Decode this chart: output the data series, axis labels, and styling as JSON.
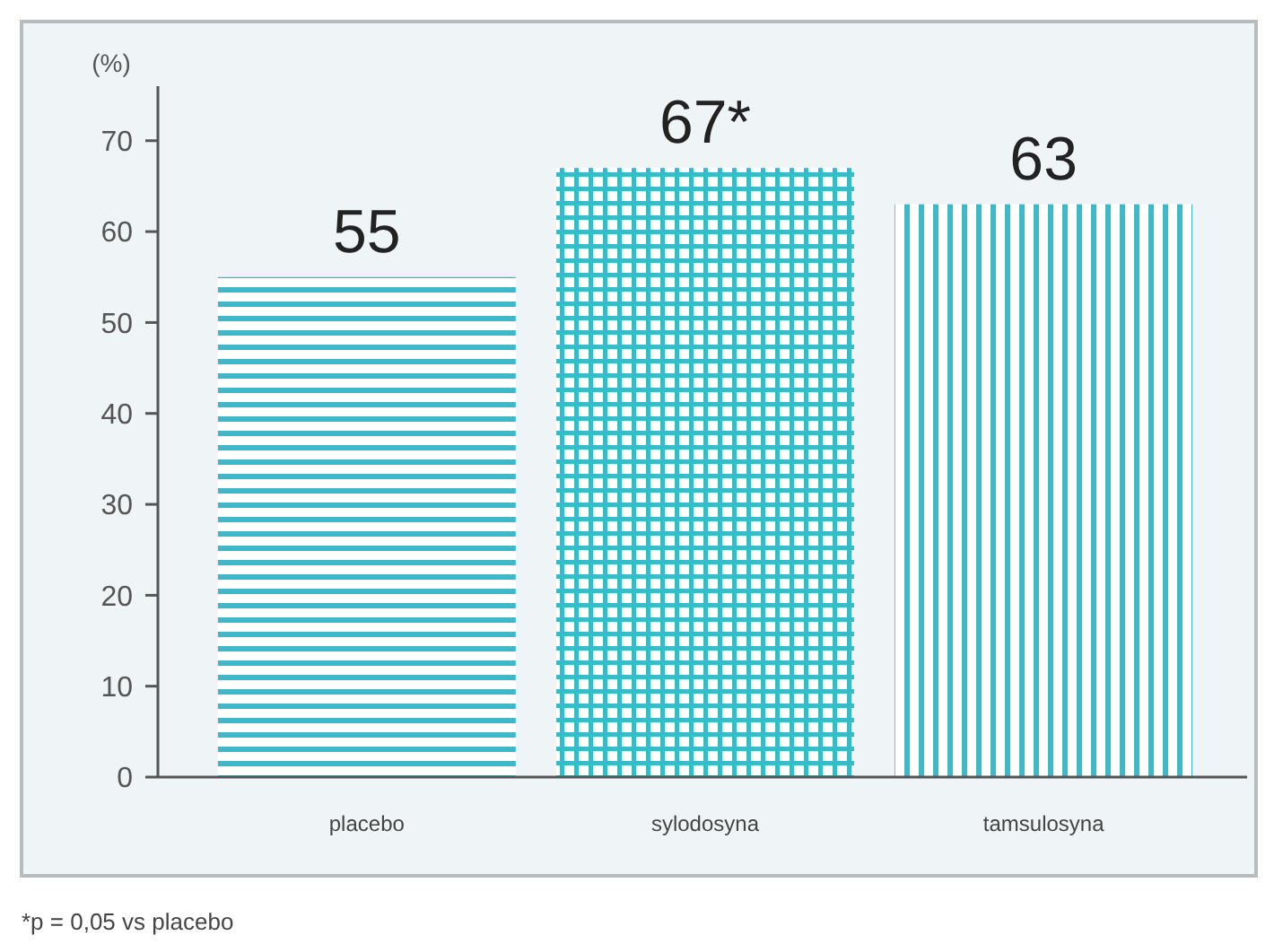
{
  "chart_data": {
    "type": "bar",
    "ylabel": "(%)",
    "categories": [
      "placebo",
      "sylodosyna",
      "tamsulosyna"
    ],
    "values": [
      55,
      67,
      63
    ],
    "value_labels": [
      "55",
      "67*",
      "63"
    ],
    "colors": [
      "#3bb9c6",
      "#3bb9c6",
      "#3bb9c6"
    ],
    "ylim": [
      0,
      76
    ],
    "yticks": [
      0,
      10,
      20,
      30,
      40,
      50,
      60,
      70
    ],
    "grid": false,
    "annotations": [
      "*p = 0,05 vs placebo"
    ]
  }
}
